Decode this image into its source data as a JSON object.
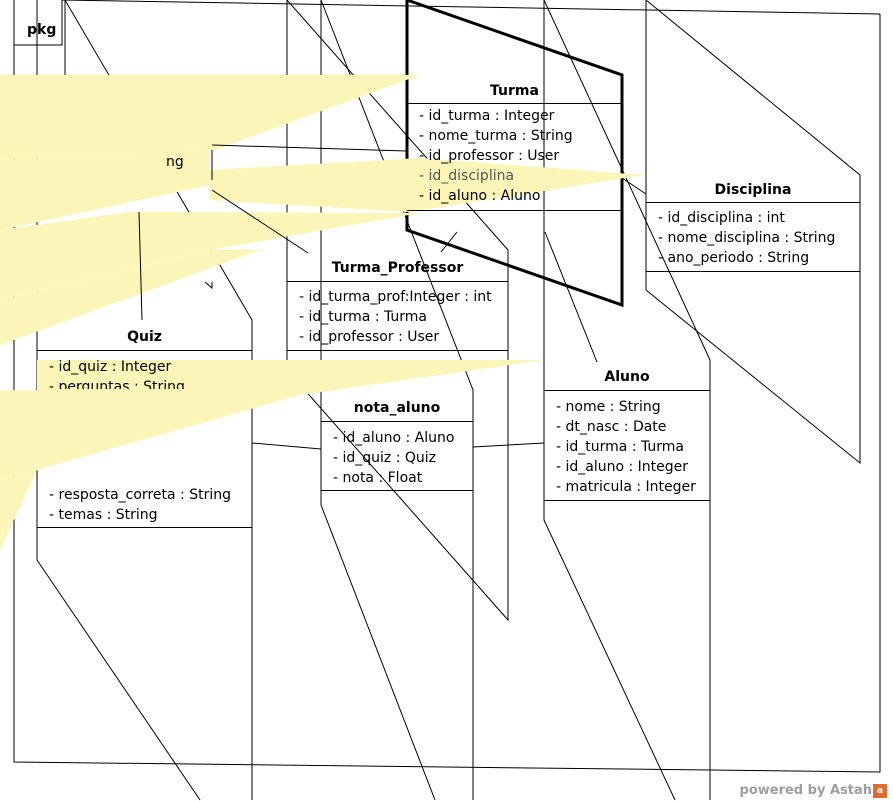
{
  "package": {
    "label": "pkg"
  },
  "classes": {
    "turma": {
      "name": "Turma",
      "attributes": [
        "- id_turma : Integer",
        "- nome_turma : String",
        "- id_professor : User",
        "- id_disciplina",
        "- id_aluno : Aluno"
      ]
    },
    "disciplina": {
      "name": "Disciplina",
      "attributes": [
        "- id_disciplina : int",
        "- nome_disciplina : String",
        "- ano_periodo : String"
      ]
    },
    "turma_professor": {
      "name": "Turma_Professor",
      "attributes": [
        "- id_turma_prof:Integer : int",
        "- id_turma : Turma",
        "- id_professor : User"
      ]
    },
    "quiz": {
      "name": "Quiz",
      "attributes": [
        "- id_quiz : Integer",
        "- perguntas : String",
        "- resposta_correta : String",
        "- temas : String"
      ]
    },
    "nota_aluno": {
      "name": "nota_aluno",
      "attributes": [
        "- id_aluno : Aluno",
        "- id_quiz : Quiz",
        "- nota : Float"
      ]
    },
    "aluno": {
      "name": "Aluno",
      "attributes": [
        "- nome : String",
        "- dt_nasc : Date",
        "- id_turma : Turma",
        "- id_aluno : Integer",
        "- matricula : Integer"
      ]
    }
  },
  "user_fragment": "ng",
  "watermark": {
    "text": "powered by Astah",
    "badge": "a"
  },
  "colors": {
    "highlight": "#fbf6b8",
    "line": "#000000",
    "watermark": "#9e9e9e"
  }
}
